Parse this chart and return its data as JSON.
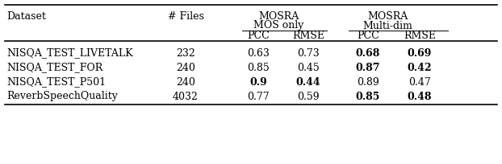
{
  "rows": [
    {
      "dataset": "NISQA_TEST_LIVETALK",
      "files": "232",
      "mos_pcc": "0.63",
      "mos_rmse": "0.73",
      "multi_pcc": "0.68",
      "multi_rmse": "0.69",
      "bold": [
        "multi_pcc",
        "multi_rmse"
      ]
    },
    {
      "dataset": "NISQA_TEST_FOR",
      "files": "240",
      "mos_pcc": "0.85",
      "mos_rmse": "0.45",
      "multi_pcc": "0.87",
      "multi_rmse": "0.42",
      "bold": [
        "multi_pcc",
        "multi_rmse"
      ]
    },
    {
      "dataset": "NISQA_TEST_P501",
      "files": "240",
      "mos_pcc": "0.9",
      "mos_rmse": "0.44",
      "multi_pcc": "0.89",
      "multi_rmse": "0.47",
      "bold": [
        "mos_pcc",
        "mos_rmse"
      ]
    },
    {
      "dataset": "ReverbSpeechQuality",
      "files": "4032",
      "mos_pcc": "0.77",
      "mos_rmse": "0.59",
      "multi_pcc": "0.85",
      "multi_rmse": "0.48",
      "bold": [
        "multi_pcc",
        "multi_rmse"
      ]
    }
  ],
  "font_size": 9.0,
  "bg_color": "#ffffff",
  "text_color": "#000000",
  "line_color": "#000000"
}
